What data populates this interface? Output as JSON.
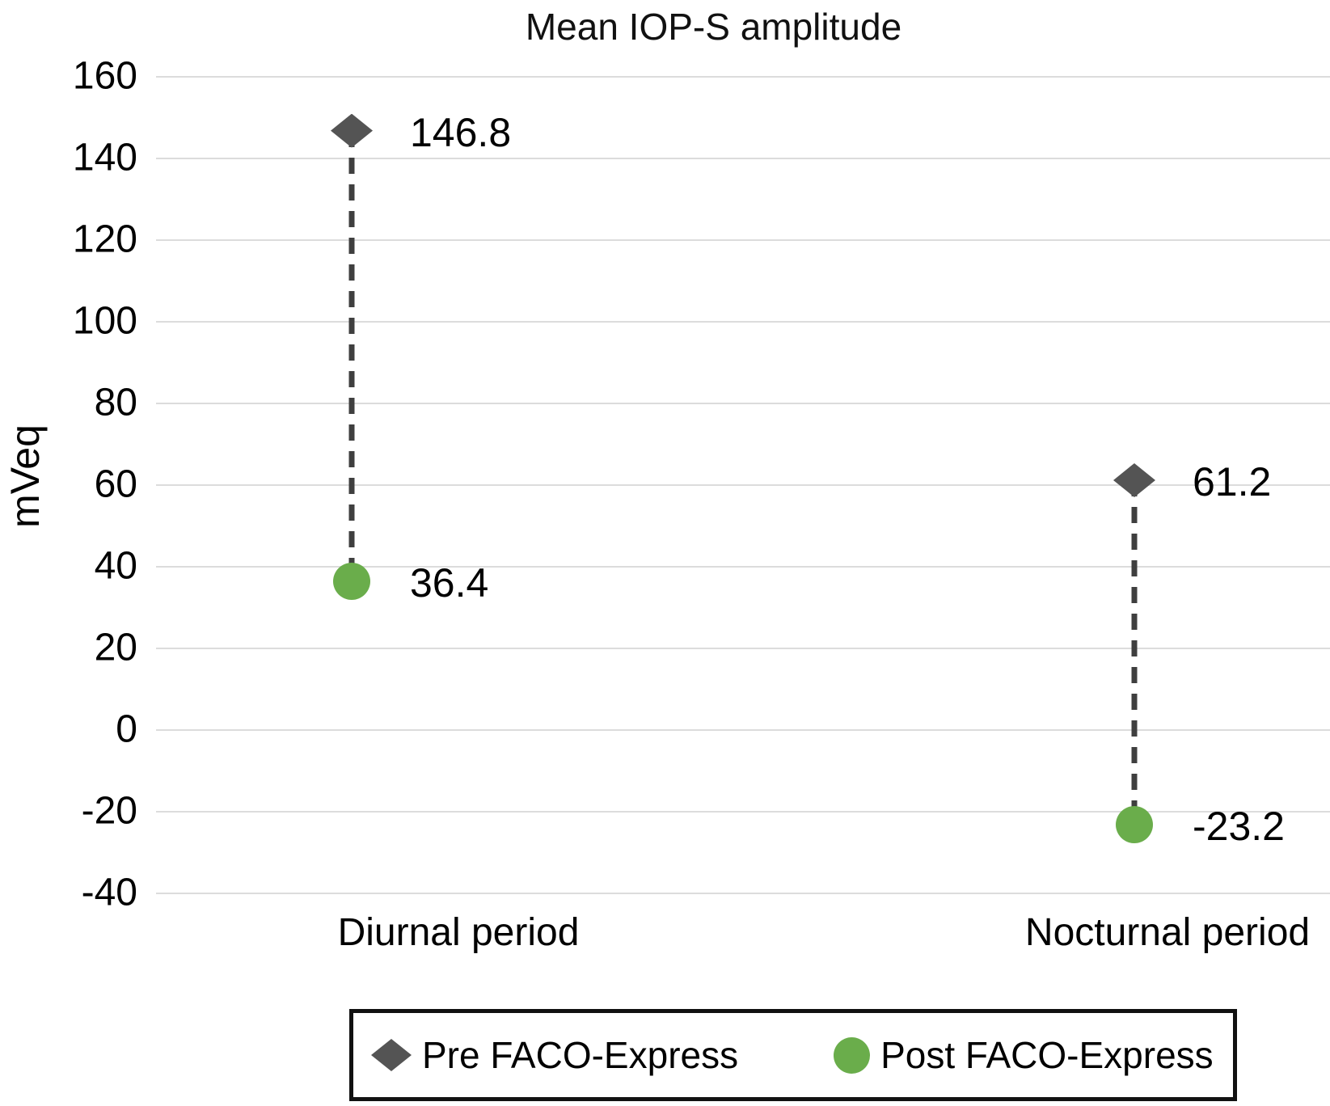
{
  "title": "Mean IOP-S amplitude",
  "chart_data": {
    "type": "scatter",
    "subtype": "dumbbell-with-dashed-connectors",
    "categories": [
      "Diurnal period",
      "Nocturnal period"
    ],
    "series": [
      {
        "name": "Pre FACO-Express",
        "marker": "diamond",
        "color": "#545454",
        "values": [
          146.8,
          61.2
        ]
      },
      {
        "name": "Post FACO-Express",
        "marker": "circle",
        "color": "#6aad4b",
        "values": [
          36.4,
          -23.2
        ]
      }
    ],
    "ylabel": "mVeq",
    "ylim": [
      -40,
      160
    ],
    "ytick_step": 20,
    "grid": true,
    "gridline_color": "#dcdcdc",
    "connector_color": "#3f3f3f",
    "legend_position": "bottom",
    "legend_border_color": "#111111"
  }
}
